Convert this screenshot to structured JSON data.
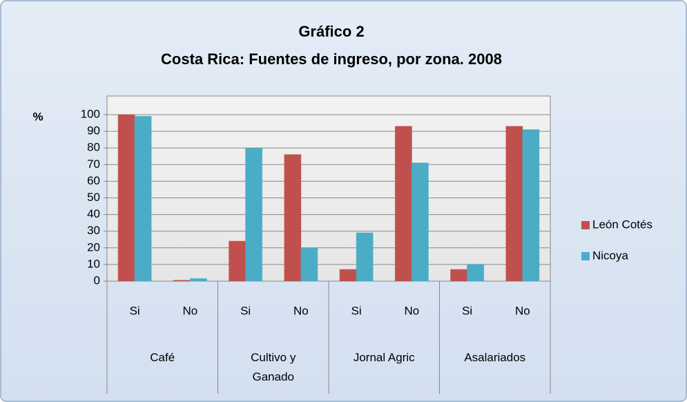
{
  "chart_data": {
    "type": "bar",
    "title": [
      "Gráfico 2",
      "Costa Rica: Fuentes de ingreso, por zona. 2008"
    ],
    "y_label": "%",
    "groups": [
      {
        "name": "Café",
        "categories": [
          "Si",
          "No"
        ]
      },
      {
        "name": "Cultivo y Ganado",
        "categories": [
          "Si",
          "No"
        ]
      },
      {
        "name": "Jornal Agric",
        "categories": [
          "Si",
          "No"
        ]
      },
      {
        "name": "Asalariados",
        "categories": [
          "Si",
          "No"
        ]
      }
    ],
    "series": [
      {
        "name": "León Cotés",
        "color": "#c0504d",
        "values": [
          100,
          0.5,
          24,
          76,
          7,
          93,
          7,
          93
        ]
      },
      {
        "name": "Nicoya",
        "color": "#4bacc6",
        "values": [
          99,
          1.5,
          80,
          20,
          29,
          71,
          10,
          91
        ]
      }
    ],
    "ylim": [
      0,
      100
    ],
    "yticks": [
      0,
      10,
      20,
      30,
      40,
      50,
      60,
      70,
      80,
      90,
      100
    ],
    "grid": true,
    "legend": "right"
  }
}
